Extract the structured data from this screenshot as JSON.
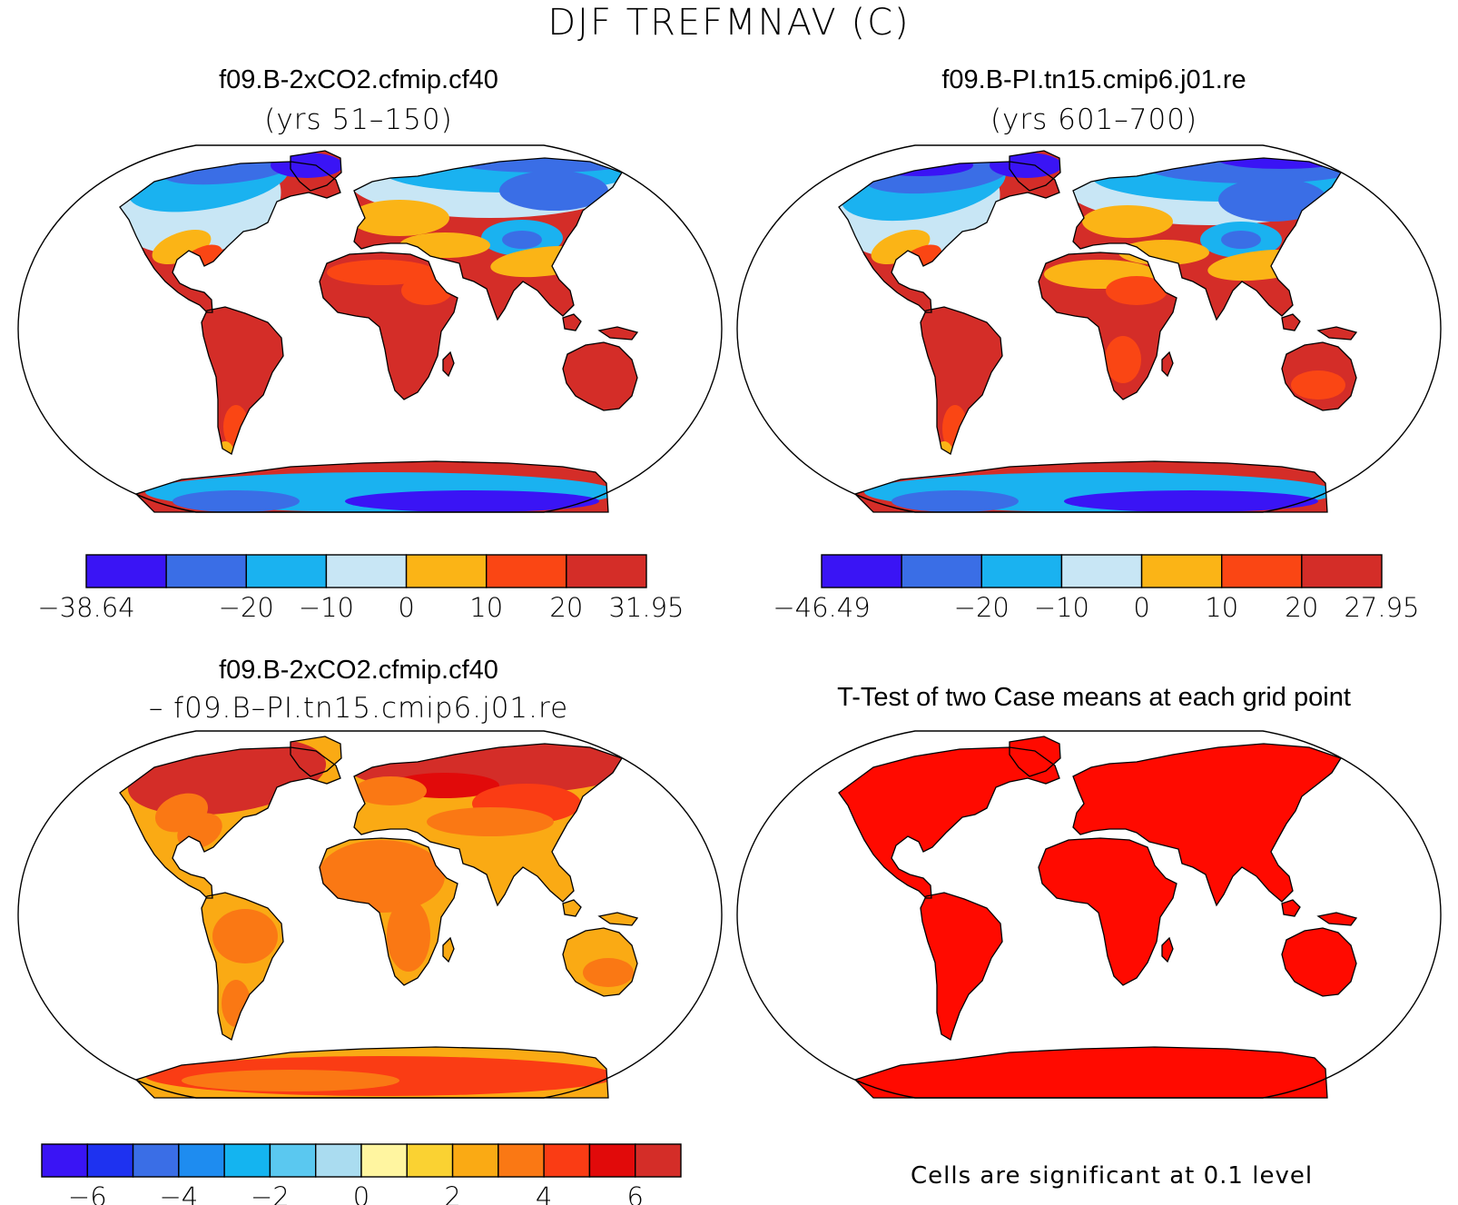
{
  "figure": {
    "title": "DJF TREFMNAV (C)",
    "note": "Cells are significant at 0.1 level"
  },
  "colors": {
    "land_fill": "#ffffff",
    "coastline": "#000000",
    "significant": "#ff0a00"
  },
  "panels": [
    {
      "title": "f09.B-2xCO2.cfmip.cf40",
      "subtitle": "(yrs 51–150)",
      "colorbar": {
        "colors": [
          "#3a14f5",
          "#3a6ee6",
          "#1ab2f0",
          "#c8e6f5",
          "#fbb416",
          "#fa4614",
          "#d42d28"
        ],
        "tick_labels": [
          "−38.64",
          "−20",
          "−10",
          "0",
          "10",
          "20",
          "31.95"
        ],
        "tick_boundaries": [
          0,
          2,
          3,
          4,
          5,
          6,
          7
        ]
      }
    },
    {
      "title": "f09.B-PI.tn15.cmip6.j01.re",
      "subtitle": "(yrs 601–700)",
      "colorbar": {
        "colors": [
          "#3a14f5",
          "#3a6ee6",
          "#1ab2f0",
          "#c8e6f5",
          "#fbb416",
          "#fa4614",
          "#d42d28"
        ],
        "tick_labels": [
          "−46.49",
          "−20",
          "−10",
          "0",
          "10",
          "20",
          "27.95"
        ],
        "tick_boundaries": [
          0,
          2,
          3,
          4,
          5,
          6,
          7
        ]
      }
    },
    {
      "title": "f09.B-2xCO2.cfmip.cf40",
      "subtitle": "– f09.B–PI.tn15.cmip6.j01.re",
      "colorbar": {
        "colors": [
          "#3a14f5",
          "#1e32f0",
          "#3a6ee6",
          "#1e8cf0",
          "#14b4f0",
          "#5ac8f0",
          "#aadcf0",
          "#fff5a0",
          "#fad232",
          "#faaa14",
          "#fa7814",
          "#fa3c14",
          "#e10a0a",
          "#d42d28"
        ],
        "tick_labels": [
          "−6",
          "−4",
          "−2",
          "0",
          "2",
          "4",
          "6"
        ],
        "tick_boundaries": [
          1,
          3,
          5,
          7,
          9,
          11,
          13
        ]
      }
    },
    {
      "title": "T-Test of two Case means at each grid point",
      "subtitle": ""
    }
  ]
}
